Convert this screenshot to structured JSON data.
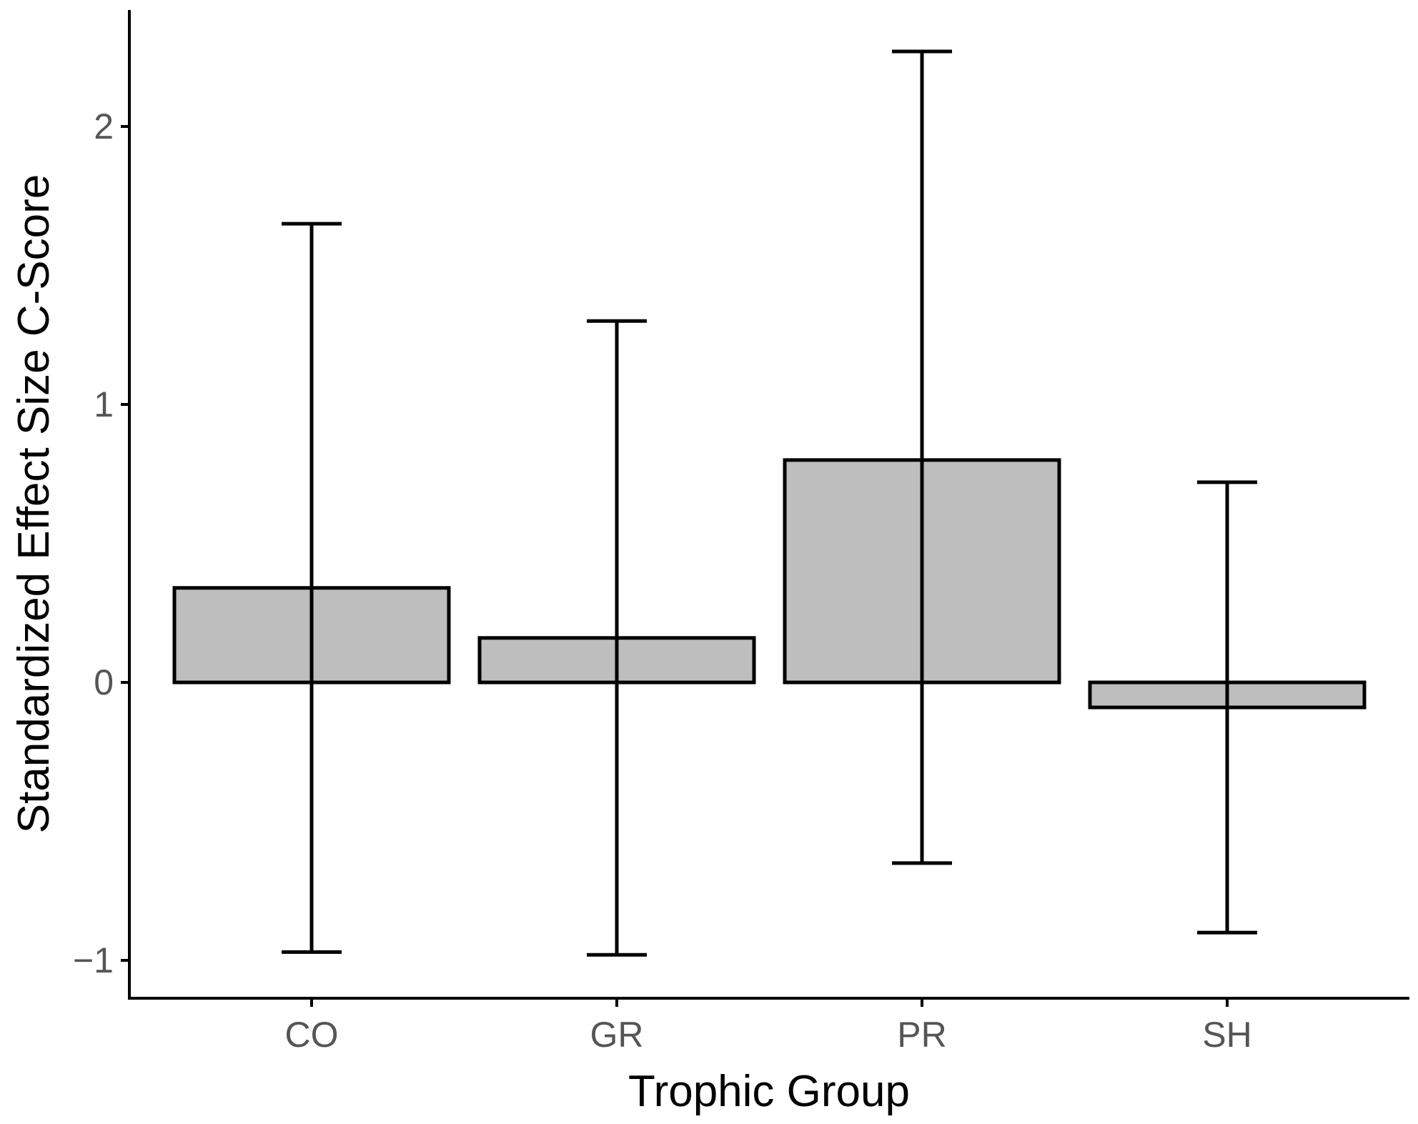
{
  "chart_data": {
    "type": "bar",
    "title": "",
    "xlabel": "Trophic Group",
    "ylabel": "Standardized Effect Size C-Score",
    "categories": [
      "CO",
      "GR",
      "PR",
      "SH"
    ],
    "values": [
      0.34,
      0.16,
      0.8,
      -0.09
    ],
    "error_low": [
      -0.97,
      -0.98,
      -0.65,
      -0.9
    ],
    "error_high": [
      1.65,
      1.3,
      2.27,
      0.72
    ],
    "yticks": [
      -1,
      0,
      1,
      2
    ],
    "ytick_labels": [
      "−1",
      "0",
      "1",
      "2"
    ],
    "ylim": [
      -1.14,
      2.42
    ],
    "grid": false,
    "bar_color": "#bebebe"
  }
}
